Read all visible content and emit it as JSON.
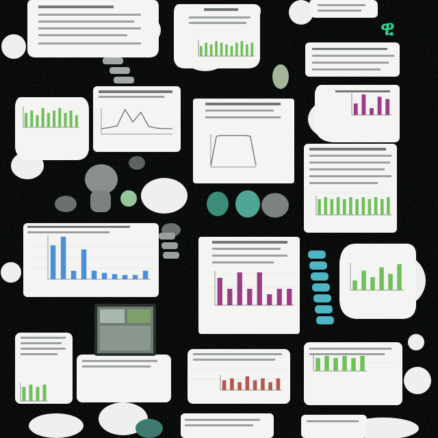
{
  "scene": {
    "background": "#050806",
    "corner_glyph": "ዊ",
    "palette": {
      "green": "#6fbf5a",
      "blue": "#4a90d9",
      "purple": "#9a3d86",
      "red": "#b5574e",
      "teal": "#4fb7a7",
      "slate": "#5f6b73"
    },
    "charts": [
      {
        "name": "top-center-bars",
        "type": "bar",
        "color": "green",
        "values": [
          6,
          8,
          7,
          9,
          8,
          7,
          6,
          8,
          9,
          7,
          8
        ]
      },
      {
        "name": "top-right-bars",
        "type": "bar",
        "color": "purple",
        "values": [
          5,
          9,
          3,
          8,
          7
        ]
      },
      {
        "name": "upper-left-bars",
        "type": "bar",
        "color": "green",
        "values": [
          6,
          7,
          5,
          8,
          6,
          7,
          8,
          6,
          7,
          5
        ]
      },
      {
        "name": "upper-center-line",
        "type": "line",
        "color": "slate",
        "values": [
          1,
          1.2,
          1.5,
          4.5,
          2.2,
          4,
          1.4,
          1.1,
          1,
          1
        ]
      },
      {
        "name": "center-plateau",
        "type": "line",
        "color": "slate",
        "values": [
          0.4,
          8.8,
          9,
          9,
          9,
          9,
          9,
          8.8,
          0.4
        ]
      },
      {
        "name": "right-green-bars",
        "type": "bar",
        "color": "green",
        "values": [
          8,
          9,
          8,
          9,
          8,
          9,
          8,
          9,
          8,
          9,
          8,
          9
        ]
      },
      {
        "name": "mid-left-blue-bars",
        "type": "bar",
        "color": "blue",
        "values": [
          8,
          10,
          2,
          7,
          2,
          1.5,
          1.2,
          1,
          1,
          2
        ]
      },
      {
        "name": "mid-center-purple-bars",
        "type": "bar",
        "color": "purple",
        "values": [
          5,
          3,
          6,
          3,
          6,
          2,
          3,
          3
        ]
      },
      {
        "name": "mid-right-mixed-bars",
        "type": "bar",
        "color": "green",
        "values": [
          3,
          6,
          4,
          7,
          5,
          8
        ]
      },
      {
        "name": "lower-left-bars",
        "type": "bar",
        "color": "green",
        "values": [
          6,
          7,
          6,
          7
        ]
      },
      {
        "name": "lower-center-red-bars",
        "type": "bar",
        "color": "red",
        "values": [
          5,
          6,
          4,
          7,
          5,
          6,
          4,
          6
        ]
      },
      {
        "name": "lower-right-bars",
        "type": "bar",
        "color": "green",
        "values": [
          6,
          7,
          6,
          7,
          6,
          7
        ]
      }
    ]
  }
}
